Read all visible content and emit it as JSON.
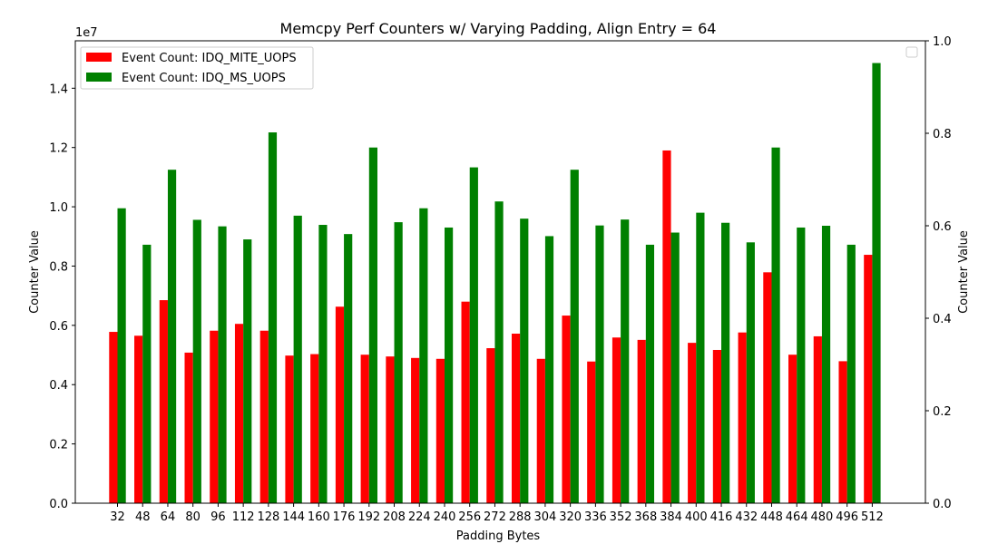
{
  "chart_data": {
    "type": "bar",
    "title": "Memcpy Perf Counters w/ Varying Padding, Align Entry = 64",
    "xlabel": "Padding Bytes",
    "ylabel": "Counter Value",
    "y2label": "Counter Value",
    "y_offset_label": "1e7",
    "y_scale": 10000000,
    "ylim": [
      0,
      15600000
    ],
    "yticks": [
      0,
      2000000,
      4000000,
      6000000,
      8000000,
      10000000,
      12000000,
      14000000
    ],
    "yticks_labels": [
      "0.0",
      "0.2",
      "0.4",
      "0.6",
      "0.8",
      "1.0",
      "1.2",
      "1.4"
    ],
    "y2lim": [
      0,
      1
    ],
    "y2ticks_labels": [
      "0.0",
      "0.2",
      "0.4",
      "0.6",
      "0.8",
      "1.0"
    ],
    "legend_position": "top-left",
    "grid": false,
    "categories": [
      "32",
      "48",
      "64",
      "80",
      "96",
      "112",
      "128",
      "144",
      "160",
      "176",
      "192",
      "208",
      "224",
      "240",
      "256",
      "272",
      "288",
      "304",
      "320",
      "336",
      "352",
      "368",
      "384",
      "400",
      "416",
      "432",
      "448",
      "464",
      "480",
      "496",
      "512"
    ],
    "series": [
      {
        "name": "Event Count: IDQ_MITE_UOPS",
        "color": "#ff0000",
        "values": [
          5780000,
          5650000,
          6850000,
          5080000,
          5820000,
          6050000,
          5820000,
          4980000,
          5030000,
          6630000,
          5010000,
          4950000,
          4900000,
          4870000,
          6800000,
          5230000,
          5720000,
          4870000,
          6330000,
          4780000,
          5590000,
          5510000,
          11900000,
          5410000,
          5170000,
          5760000,
          7790000,
          5010000,
          5630000,
          4790000,
          8380000
        ]
      },
      {
        "name": "Event Count: IDQ_MS_UOPS",
        "color": "#008000",
        "values": [
          9950000,
          8720000,
          11250000,
          9560000,
          9340000,
          8900000,
          12510000,
          9700000,
          9390000,
          9080000,
          12000000,
          9480000,
          9950000,
          9300000,
          11330000,
          10180000,
          9600000,
          9010000,
          11250000,
          9370000,
          9570000,
          8720000,
          9130000,
          9800000,
          9460000,
          8800000,
          12000000,
          9300000,
          9360000,
          8720000,
          14850000
        ]
      }
    ]
  }
}
